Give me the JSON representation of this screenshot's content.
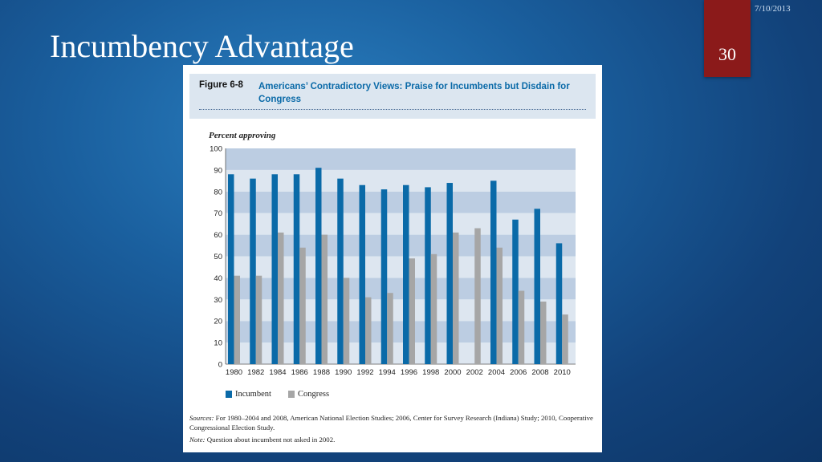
{
  "slide": {
    "date": "7/10/2013",
    "title": "Incumbency Advantage",
    "number": "30"
  },
  "figure": {
    "label": "Figure 6-8",
    "title": "Americans’ Contradictory Views: Praise for Incumbents but Disdain for Congress",
    "sources_lead": "Sources:",
    "sources": "For 1980–2004 and 2008, American National Election Studies; 2006, Center for Survey Research (Indiana) Study; 2010, Cooperative Congressional Election Study.",
    "note_lead": "Note:",
    "note": "Question about incumbent not asked in 2002."
  },
  "colors": {
    "incumbent": "#0a6aa8",
    "congress": "#a6a6a6",
    "band_dark": "#bccde2",
    "band_light": "#dde6f0",
    "slide_tab": "#8b1a1a"
  },
  "chart_data": {
    "type": "bar",
    "title": "",
    "xlabel": "",
    "ylabel": "Percent approving",
    "ylim": [
      0,
      100
    ],
    "yticks": [
      0,
      10,
      20,
      30,
      40,
      50,
      60,
      70,
      80,
      90,
      100
    ],
    "grid": "horizontal bands",
    "legend": "bottom-left",
    "categories": [
      "1980",
      "1982",
      "1984",
      "1986",
      "1988",
      "1990",
      "1992",
      "1994",
      "1996",
      "1998",
      "2000",
      "2002",
      "2004",
      "2006",
      "2008",
      "2010"
    ],
    "series": [
      {
        "name": "Incumbent",
        "values": [
          88,
          86,
          88,
          88,
          91,
          86,
          83,
          81,
          83,
          82,
          84,
          null,
          85,
          67,
          72,
          56
        ]
      },
      {
        "name": "Congress",
        "values": [
          41,
          41,
          61,
          54,
          60,
          40,
          31,
          33,
          49,
          51,
          61,
          63,
          54,
          34,
          29,
          23
        ]
      }
    ]
  }
}
